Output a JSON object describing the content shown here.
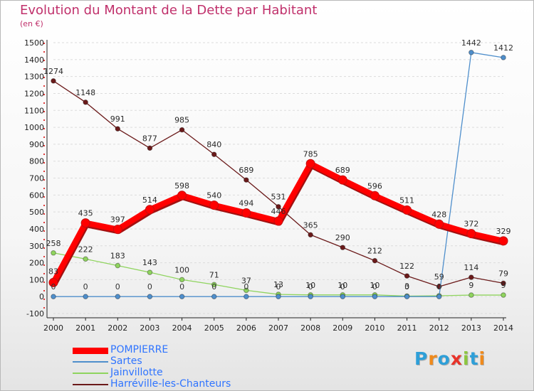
{
  "title": "Evolution du Montant de la Dette par Habitant",
  "subtitle": "(en €)",
  "logo": {
    "text": "Proxiti",
    "letter_colors": [
      "#2e9fd8",
      "#f08a1c",
      "#2e9fd8",
      "#e8332a",
      "#8cc63f",
      "#2e9fd8",
      "#f08a1c"
    ]
  },
  "chart_data": {
    "type": "line",
    "x": [
      "2000",
      "2001",
      "2002",
      "2003",
      "2004",
      "2005",
      "2006",
      "2007",
      "2008",
      "2009",
      "2010",
      "2011",
      "2012",
      "2013",
      "2014"
    ],
    "ylim": [
      -100,
      1500
    ],
    "yticks": [
      "-100",
      "0",
      "100",
      "200",
      "300",
      "400",
      "500",
      "600",
      "700",
      "800",
      "900",
      "1000",
      "1100",
      "1200",
      "1300",
      "1400",
      "1500"
    ],
    "grid": "horizontal",
    "legend_position": "bottom-left",
    "series": [
      {
        "name": "POMPIERRE",
        "color": "#ff0000",
        "values": [
          83,
          435,
          397,
          514,
          598,
          540,
          494,
          446,
          785,
          689,
          596,
          511,
          428,
          372,
          329
        ],
        "labels": [
          "83",
          "435",
          "397",
          "514",
          "598",
          "540",
          "494",
          "446",
          "785",
          "689",
          "596",
          "511",
          "428",
          "372",
          "329"
        ]
      },
      {
        "name": "Sartes",
        "color": "#4f8fcc",
        "values": [
          0,
          0,
          0,
          0,
          0,
          0,
          0,
          0,
          0,
          0,
          0,
          0,
          0,
          1442,
          1412
        ],
        "labels": [
          "0",
          "0",
          "0",
          "0",
          "0",
          "0",
          "0",
          "0",
          "0",
          "0",
          "0",
          "0",
          "0",
          "1442",
          "1412"
        ]
      },
      {
        "name": "Jainvillotte",
        "color": "#8fd45e",
        "values": [
          258,
          222,
          183,
          143,
          100,
          71,
          37,
          13,
          10,
          10,
          10,
          3,
          5,
          9,
          9
        ],
        "labels": [
          "258",
          "222",
          "183",
          "143",
          "100",
          "71",
          "37",
          "13",
          "10",
          "10",
          "10",
          "3",
          "",
          "9",
          "9"
        ]
      },
      {
        "name": "Harréville-les-Chanteurs",
        "color": "#6b1a1a",
        "values": [
          1274,
          1148,
          991,
          877,
          985,
          840,
          689,
          531,
          365,
          290,
          212,
          122,
          59,
          114,
          79
        ],
        "labels": [
          "1274",
          "1148",
          "991",
          "877",
          "985",
          "840",
          "689",
          "531",
          "365",
          "290",
          "212",
          "122",
          "59",
          "114",
          "79"
        ]
      }
    ]
  }
}
